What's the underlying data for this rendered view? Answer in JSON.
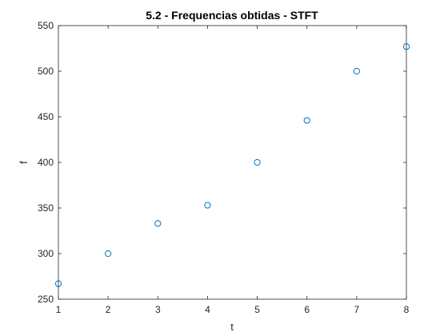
{
  "chart_data": {
    "type": "scatter",
    "title": "5.2 - Frequencias obtidas  - STFT",
    "xlabel": "t",
    "ylabel": "f",
    "xlim": [
      1,
      8
    ],
    "ylim": [
      250,
      550
    ],
    "xticks": [
      1,
      2,
      3,
      4,
      5,
      6,
      7,
      8
    ],
    "yticks": [
      250,
      300,
      350,
      400,
      450,
      500,
      550
    ],
    "grid": false,
    "marker": "circle-open",
    "series": [
      {
        "x": [
          1,
          2,
          3,
          4,
          5,
          6,
          7,
          8
        ],
        "y": [
          267,
          300,
          333,
          353,
          400,
          446,
          500,
          527
        ]
      }
    ],
    "colors": {
      "marker": "#0072BD",
      "axes": "#262626",
      "background": "#ffffff"
    }
  }
}
